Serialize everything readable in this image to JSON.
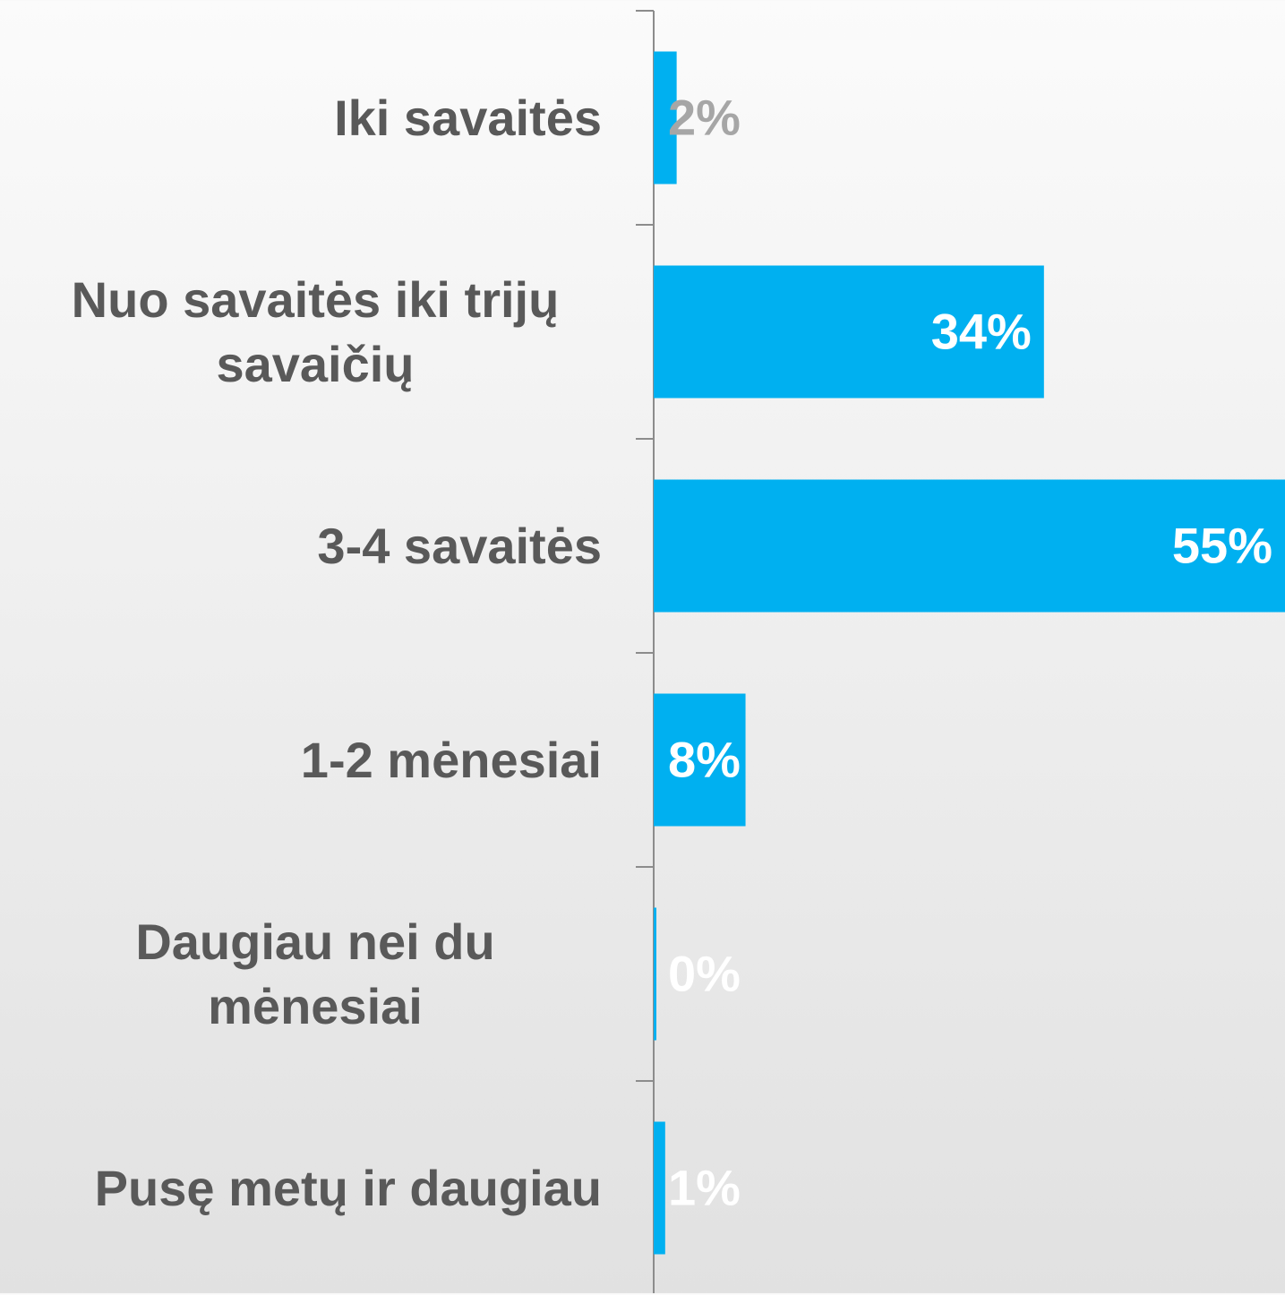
{
  "chart_data": {
    "type": "bar",
    "orientation": "horizontal",
    "categories": [
      "Iki savaitės",
      "Nuo savaitės iki trijų savaičių",
      "3-4 savaitės",
      "1-2 mėnesiai",
      "Daugiau nei du mėnesiai",
      "Pusę metų ir daugiau"
    ],
    "values": [
      2,
      34,
      55,
      8,
      0,
      1
    ],
    "value_labels": [
      "2%",
      "34%",
      "55%",
      "8%",
      "0%",
      "1%"
    ],
    "value_label_colors": [
      "#a6a6a6",
      "#ffffff",
      "#ffffff",
      "#ffffff",
      "#ffffff",
      "#ffffff"
    ],
    "color": "#00b0f0",
    "xlim": [
      0,
      55
    ]
  }
}
